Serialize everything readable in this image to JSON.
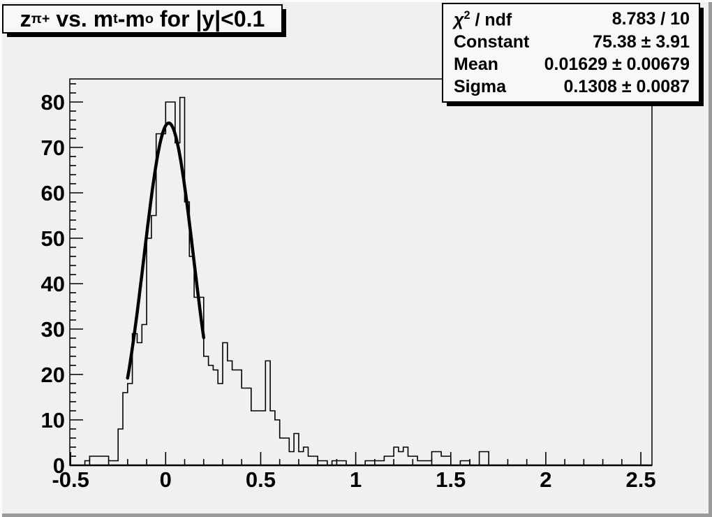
{
  "canvas": {
    "background": "#f0f0f0",
    "edge_light": "#fbfbfb",
    "edge_dark": "#9a9a9a",
    "pave_fill": "#f8f8f8",
    "pave_border": "#000000",
    "pave_shadow": "#000000"
  },
  "title_box": {
    "parts": [
      {
        "t": "z"
      },
      {
        "t": "π+",
        "sub": true
      },
      {
        "t": " vs. m"
      },
      {
        "t": "t",
        "sub": true
      },
      {
        "t": "-m"
      },
      {
        "t": "o",
        "sub": true
      },
      {
        "t": " for |y|<0.1"
      }
    ]
  },
  "stats_box": {
    "rows": [
      {
        "label_chi": "χ",
        "label_sup": "2",
        "label_rest": " / ndf",
        "value": "8.783 / 10"
      },
      {
        "label": "Constant",
        "value": "75.38 ± 3.91"
      },
      {
        "label": "Mean",
        "value": "0.01629 ± 0.00679"
      },
      {
        "label": "Sigma",
        "value": "0.1308 ± 0.0087"
      }
    ]
  },
  "chart_data": {
    "type": "bar",
    "subtype": "step-histogram",
    "title": "z_{pi+} vs. m_t-m_o for |y|<0.1",
    "xlabel": "",
    "ylabel": "",
    "x_range": [
      -0.5,
      2.56
    ],
    "y_range": [
      0,
      85
    ],
    "grid": false,
    "line_color": "#000000",
    "fit_color": "#000000",
    "x_major_ticks": [
      -0.5,
      0,
      0.5,
      1,
      1.5,
      2,
      2.5
    ],
    "x_major_labels": [
      "-0.5",
      "0",
      "0.5",
      "1",
      "1.5",
      "2",
      "2.5"
    ],
    "x_minor_step": 0.1,
    "y_major_ticks": [
      0,
      10,
      20,
      30,
      40,
      50,
      60,
      70,
      80
    ],
    "y_major_labels": [
      "0",
      "10",
      "20",
      "30",
      "40",
      "50",
      "60",
      "70",
      "80"
    ],
    "y_minor_step": 2,
    "bins": [
      [
        -0.5,
        -0.425,
        0
      ],
      [
        -0.425,
        -0.4,
        1
      ],
      [
        -0.4,
        -0.3,
        2
      ],
      [
        -0.3,
        -0.25,
        1
      ],
      [
        -0.25,
        -0.225,
        8
      ],
      [
        -0.225,
        -0.2,
        16
      ],
      [
        -0.2,
        -0.175,
        18
      ],
      [
        -0.175,
        -0.15,
        29
      ],
      [
        -0.15,
        -0.125,
        27
      ],
      [
        -0.125,
        -0.1,
        31
      ],
      [
        -0.1,
        -0.075,
        50
      ],
      [
        -0.075,
        -0.05,
        55
      ],
      [
        -0.05,
        0,
        73
      ],
      [
        0,
        0.05,
        80
      ],
      [
        0.05,
        0.075,
        71
      ],
      [
        0.075,
        0.1,
        81
      ],
      [
        0.1,
        0.125,
        58
      ],
      [
        0.125,
        0.15,
        46
      ],
      [
        0.15,
        0.2,
        37
      ],
      [
        0.2,
        0.225,
        24
      ],
      [
        0.225,
        0.25,
        22
      ],
      [
        0.25,
        0.275,
        21
      ],
      [
        0.275,
        0.3,
        18
      ],
      [
        0.3,
        0.325,
        27
      ],
      [
        0.325,
        0.35,
        23
      ],
      [
        0.35,
        0.4,
        21
      ],
      [
        0.4,
        0.45,
        17
      ],
      [
        0.45,
        0.525,
        12
      ],
      [
        0.525,
        0.55,
        23
      ],
      [
        0.55,
        0.575,
        12
      ],
      [
        0.575,
        0.6,
        10
      ],
      [
        0.6,
        0.65,
        6
      ],
      [
        0.65,
        0.675,
        3
      ],
      [
        0.675,
        0.7,
        7
      ],
      [
        0.7,
        0.725,
        3
      ],
      [
        0.725,
        0.75,
        4
      ],
      [
        0.75,
        0.8,
        2
      ],
      [
        0.8,
        0.85,
        1
      ],
      [
        0.85,
        0.875,
        0
      ],
      [
        0.875,
        0.95,
        1
      ],
      [
        0.95,
        1.05,
        0
      ],
      [
        1.05,
        1.15,
        1
      ],
      [
        1.15,
        1.2,
        2
      ],
      [
        1.2,
        1.225,
        4
      ],
      [
        1.225,
        1.25,
        3
      ],
      [
        1.25,
        1.275,
        4
      ],
      [
        1.275,
        1.325,
        2
      ],
      [
        1.325,
        1.4,
        1
      ],
      [
        1.4,
        1.45,
        3
      ],
      [
        1.45,
        1.5,
        2
      ],
      [
        1.5,
        1.55,
        0
      ],
      [
        1.55,
        1.6,
        1
      ],
      [
        1.6,
        1.65,
        0
      ],
      [
        1.65,
        1.7,
        3
      ],
      [
        1.7,
        2.56,
        0
      ]
    ],
    "fit": {
      "shape": "gaussian",
      "chi2": 8.783,
      "ndf": 10,
      "constant": 75.38,
      "constant_err": 3.91,
      "mean": 0.01629,
      "mean_err": 0.00679,
      "sigma": 0.1308,
      "sigma_err": 0.0087,
      "draw_range": [
        -0.2,
        0.2
      ]
    }
  }
}
